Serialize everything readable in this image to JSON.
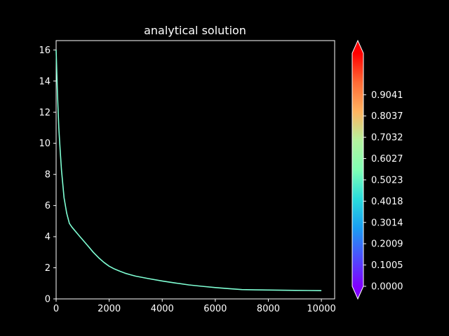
{
  "chart_data": {
    "type": "line",
    "title": "analytical solution",
    "xlabel": "",
    "ylabel": "",
    "xlim": [
      0,
      10500
    ],
    "ylim": [
      0,
      16.6
    ],
    "xticks": [
      0,
      2000,
      4000,
      6000,
      8000,
      10000
    ],
    "yticks": [
      0,
      2,
      4,
      6,
      8,
      10,
      12,
      14,
      16
    ],
    "grid": false,
    "series": [
      {
        "color": "#7fffd4",
        "x": [
          0,
          50,
          100,
          150,
          200,
          300,
          400,
          500,
          600,
          700,
          800,
          900,
          1000,
          1200,
          1400,
          1600,
          1800,
          2000,
          2200,
          2400,
          2600,
          2800,
          3000,
          3500,
          4000,
          4500,
          5000,
          5500,
          6000,
          6500,
          7000,
          7500,
          8000,
          8500,
          9000,
          9500,
          10000
        ],
        "y": [
          16.0,
          13.2,
          11.0,
          9.6,
          8.3,
          6.5,
          5.5,
          4.85,
          4.6,
          4.4,
          4.2,
          4.0,
          3.8,
          3.4,
          3.0,
          2.65,
          2.35,
          2.1,
          1.92,
          1.78,
          1.65,
          1.55,
          1.46,
          1.3,
          1.15,
          1.02,
          0.9,
          0.81,
          0.73,
          0.66,
          0.6,
          0.58,
          0.57,
          0.56,
          0.55,
          0.54,
          0.53
        ]
      }
    ],
    "colorbar": {
      "ticks": [
        "0.0000",
        "0.1005",
        "0.2009",
        "0.3014",
        "0.4018",
        "0.5023",
        "0.6027",
        "0.7032",
        "0.8037",
        "0.9041"
      ],
      "range": [
        0,
        1.1
      ],
      "colormap": "rainbow",
      "extend": "both",
      "under_color": "#8000ff",
      "over_color": "#ff0000"
    }
  }
}
